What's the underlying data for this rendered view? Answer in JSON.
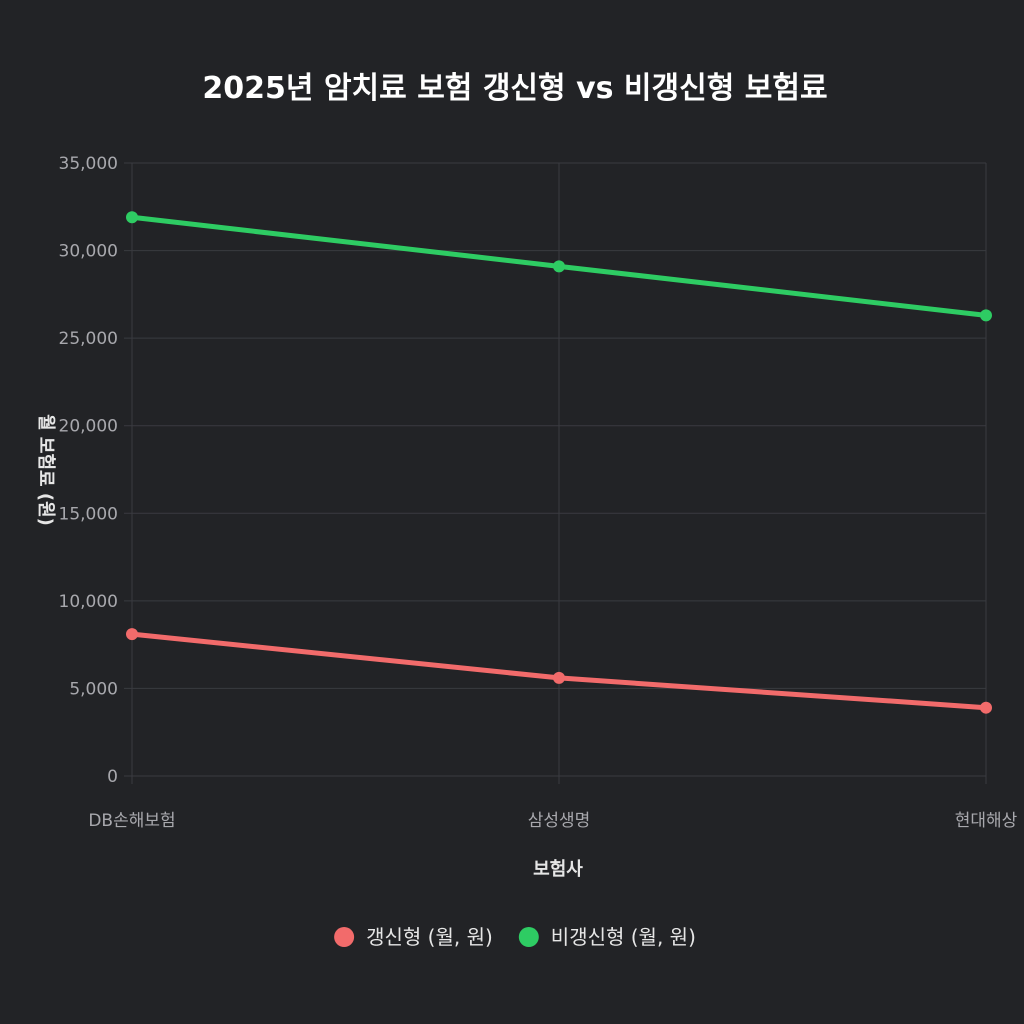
{
  "chart_data": {
    "type": "line",
    "title": "2025년 암치료 보험 갱신형 vs 비갱신형 보험료",
    "xlabel": "보험사",
    "ylabel": "월 보험료 (원)",
    "categories": [
      "DB손해보험",
      "삼성생명",
      "현대해상"
    ],
    "ylim": [
      0,
      35000
    ],
    "yticks": [
      0,
      5000,
      10000,
      15000,
      20000,
      25000,
      30000,
      35000
    ],
    "ytick_labels": [
      "0",
      "5,000",
      "10,000",
      "15,000",
      "20,000",
      "25,000",
      "30,000",
      "35,000"
    ],
    "grid": true,
    "legend_position": "bottom",
    "series": [
      {
        "name": "갱신형 (월, 원)",
        "values": [
          8100,
          5600,
          3900
        ],
        "color": "#f26b6b"
      },
      {
        "name": "비갱신형 (월, 원)",
        "values": [
          31900,
          29100,
          26300
        ],
        "color": "#2ecc63"
      }
    ]
  }
}
